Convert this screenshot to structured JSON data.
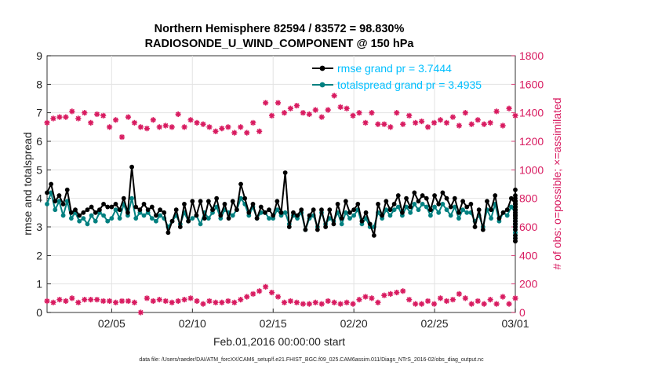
{
  "chart_data": {
    "type": "line",
    "title_line1": "Northern Hemisphere 82594 / 83572 = 98.830%",
    "title_line2": "RADIOSONDE_U_WIND_COMPONENT @ 150 hPa",
    "xlabel": "Feb.01,2016 00:00:00 start",
    "ylabel_left": "rmse and totalspread",
    "ylabel_right": "# of obs: o=possible; ×=assimilated",
    "footer": "data file: /Users/raeder/DAI/ATM_forcXX/CAM6_setup/f.e21.FHIST_BGC.f09_025.CAM6assim.011/Diags_NTrS_2016-02/obs_diag_output.nc",
    "x_ticks": [
      "02/05",
      "02/10",
      "02/15",
      "02/20",
      "02/25",
      "03/01"
    ],
    "x_tick_days": [
      5,
      10,
      15,
      20,
      25,
      30
    ],
    "xlim": [
      1,
      30
    ],
    "ylim_left": [
      0,
      9
    ],
    "ylim_right": [
      0,
      1800
    ],
    "y_ticks_left": [
      "0",
      "1",
      "2",
      "3",
      "4",
      "5",
      "6",
      "7",
      "8",
      "9"
    ],
    "y_ticks_right": [
      "0",
      "200",
      "400",
      "600",
      "800",
      "1000",
      "1200",
      "1400",
      "1600",
      "1800"
    ],
    "legend": [
      {
        "name": "rmse",
        "label": "rmse grand pr = 3.7444",
        "color": "#000000"
      },
      {
        "name": "totalspread",
        "label": "totalspread grand pr = 3.4935",
        "color": "#008080"
      }
    ],
    "legend_text_color": "#00bfff",
    "obs_color": "#d81b60",
    "x_step_days": 0.25,
    "series": [
      {
        "name": "rmse",
        "values": [
          4.2,
          4.5,
          3.9,
          4.1,
          3.8,
          4.3,
          3.5,
          3.6,
          3.4,
          3.5,
          3.6,
          3.7,
          3.5,
          3.6,
          3.8,
          3.7,
          3.7,
          3.8,
          3.6,
          4.0,
          3.5,
          5.1,
          3.7,
          3.6,
          3.8,
          3.6,
          3.7,
          3.4,
          3.6,
          3.5,
          2.8,
          3.2,
          3.6,
          3.0,
          3.8,
          3.2,
          3.9,
          3.4,
          3.9,
          3.3,
          3.9,
          3.6,
          4.0,
          3.4,
          3.8,
          3.3,
          3.9,
          3.6,
          4.5,
          4.0,
          3.5,
          3.8,
          3.3,
          3.7,
          3.5,
          3.6,
          3.4,
          3.9,
          3.5,
          4.9,
          3.0,
          3.5,
          3.4,
          3.6,
          2.9,
          3.4,
          3.6,
          2.9,
          3.6,
          3.0,
          3.6,
          3.1,
          3.8,
          3.3,
          3.9,
          3.5,
          3.6,
          3.8,
          3.2,
          3.5,
          3.1,
          2.7,
          3.8,
          3.4,
          3.9,
          3.6,
          3.8,
          4.1,
          3.5,
          4.0,
          3.7,
          4.2,
          3.9,
          4.1,
          4.0,
          3.6,
          4.1,
          3.8,
          4.2,
          4.0,
          3.7,
          4.0,
          3.5,
          3.9,
          3.7,
          3.8,
          3.0,
          3.6,
          2.9,
          3.9,
          3.6,
          4.1,
          3.3,
          3.5,
          3.6,
          4.0,
          3.8,
          3.6,
          3.8,
          3.8,
          3.9,
          3.7,
          4.0,
          3.8,
          3.9,
          4.1,
          3.5,
          3.7,
          3.6,
          3.8,
          3.4,
          3.9,
          3.6,
          3.8,
          3.5,
          4.3,
          3.5,
          3.9,
          3.4,
          3.5,
          3.1,
          3.6,
          3.3,
          3.4,
          3.2,
          3.6,
          2.9,
          3.4,
          2.5,
          3.4,
          2.7,
          3.3,
          2.6,
          3.4,
          3.0,
          3.2,
          2.5,
          3.7,
          3.1,
          3.8,
          3.9
        ]
      },
      {
        "name": "totalspread",
        "values": [
          3.8,
          4.2,
          3.6,
          3.9,
          3.4,
          3.9,
          3.3,
          3.5,
          3.2,
          3.3,
          3.1,
          3.4,
          3.2,
          3.5,
          3.4,
          3.2,
          3.3,
          3.6,
          3.3,
          3.8,
          3.4,
          4.0,
          3.3,
          3.5,
          3.4,
          3.5,
          3.3,
          3.2,
          3.4,
          3.3,
          3.0,
          3.2,
          3.4,
          3.1,
          3.5,
          3.2,
          3.3,
          3.4,
          3.1,
          3.5,
          3.3,
          3.5,
          3.7,
          3.3,
          3.6,
          3.5,
          3.4,
          3.6,
          4.0,
          3.8,
          3.4,
          3.7,
          3.3,
          3.5,
          3.5,
          3.3,
          3.3,
          3.6,
          3.4,
          3.5,
          3.1,
          3.4,
          3.3,
          3.5,
          2.9,
          3.3,
          3.4,
          3.0,
          3.5,
          3.1,
          3.3,
          3.2,
          3.5,
          3.1,
          3.5,
          3.3,
          3.4,
          3.6,
          3.1,
          3.3,
          3.0,
          3.0,
          3.5,
          3.3,
          3.6,
          3.4,
          3.6,
          3.7,
          3.4,
          3.7,
          3.5,
          3.8,
          3.6,
          3.8,
          3.7,
          3.4,
          3.7,
          3.5,
          3.8,
          3.6,
          3.4,
          3.7,
          3.3,
          3.6,
          3.5,
          3.5,
          3.2,
          3.4,
          3.0,
          3.6,
          3.3,
          3.8,
          3.2,
          3.5,
          3.4,
          3.7,
          3.5,
          3.4,
          3.6,
          3.6,
          3.6,
          3.4,
          3.7,
          3.5,
          3.6,
          3.7,
          3.3,
          3.5,
          3.4,
          3.5,
          3.2,
          3.6,
          3.4,
          3.5,
          3.3,
          3.9,
          3.3,
          3.6,
          3.2,
          3.3,
          3.0,
          3.4,
          3.1,
          3.2,
          3.0,
          3.3,
          2.8,
          3.2,
          2.6,
          3.2,
          2.8,
          3.1,
          2.7,
          3.2,
          2.9,
          3.0,
          2.7,
          3.3,
          3.0,
          3.1,
          3.1
        ]
      },
      {
        "name": "obs_possible",
        "values": [
          1330,
          1360,
          1370,
          1370,
          1410,
          1360,
          1400,
          1330,
          1390,
          1380,
          1300,
          1350,
          1230,
          1370,
          1330,
          1300,
          1290,
          1350,
          1300,
          1310,
          1300,
          1390,
          1300,
          1350,
          1330,
          1320,
          1300,
          1270,
          1290,
          1300,
          1260,
          1300,
          1260,
          1330,
          1270,
          1470,
          1380,
          1470,
          1400,
          1430,
          1450,
          1400,
          1390,
          1420,
          1370,
          1420,
          1520,
          1440,
          1430,
          1380,
          1400,
          1330,
          1400,
          1320,
          1320,
          1300,
          1400,
          1320,
          1380,
          1330,
          1340,
          1300,
          1330,
          1350,
          1330,
          1370,
          1310,
          1400,
          1320,
          1350,
          1320,
          1330,
          1410,
          1310,
          1430,
          1380
        ]
      },
      {
        "name": "obs_assimilated",
        "values": [
          80,
          70,
          90,
          80,
          100,
          70,
          90,
          90,
          90,
          80,
          80,
          70,
          80,
          80,
          70,
          0,
          100,
          80,
          90,
          80,
          70,
          80,
          90,
          100,
          80,
          60,
          80,
          70,
          70,
          80,
          70,
          90,
          110,
          130,
          150,
          180,
          140,
          110,
          70,
          80,
          70,
          60,
          60,
          70,
          60,
          80,
          70,
          60,
          70,
          60,
          90,
          110,
          100,
          70,
          120,
          130,
          140,
          150,
          90,
          60,
          60,
          80,
          60,
          100,
          80,
          90,
          130,
          100,
          60,
          80,
          60,
          90,
          60,
          110,
          60,
          100
        ]
      }
    ]
  }
}
